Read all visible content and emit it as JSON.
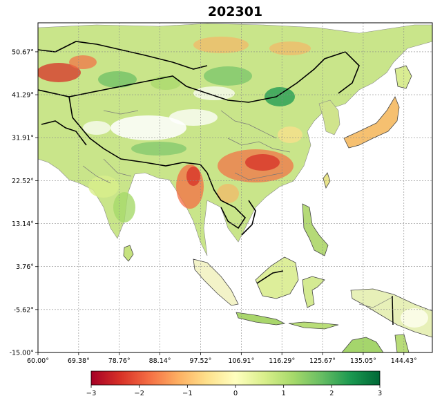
{
  "title": "202301",
  "map": {
    "lon_range": [
      60.0,
      151.0
    ],
    "lat_range": [
      -15.0,
      57.0
    ],
    "gridlines": true,
    "lon_ticks": [
      "60.00°",
      "69.38°",
      "78.76°",
      "88.14°",
      "97.52°",
      "106.91°",
      "116.29°",
      "125.67°",
      "135.05°",
      "144.43°"
    ],
    "lat_ticks": [
      "-15.00°",
      "-5.62°",
      "3.76°",
      "13.14°",
      "22.52°",
      "31.91°",
      "41.29°",
      "50.67°"
    ],
    "lon_values": [
      60.0,
      69.38,
      78.76,
      88.14,
      97.52,
      106.91,
      116.29,
      125.67,
      135.05,
      144.43
    ],
    "lat_values": [
      -15.0,
      -5.62,
      3.76,
      13.14,
      22.52,
      31.91,
      41.29,
      50.67
    ]
  },
  "colorbar": {
    "min": -3,
    "max": 3,
    "ticks": [
      "−3",
      "−2",
      "−1",
      "0",
      "1",
      "2",
      "3"
    ],
    "tick_values": [
      -3,
      -2,
      -1,
      0,
      1,
      2,
      3
    ],
    "colors": [
      "#a50026",
      "#d73027",
      "#f46d43",
      "#fdae61",
      "#fee08b",
      "#ffffbf",
      "#d9ef8b",
      "#a6d96a",
      "#66bd63",
      "#1a9850",
      "#006837"
    ]
  }
}
